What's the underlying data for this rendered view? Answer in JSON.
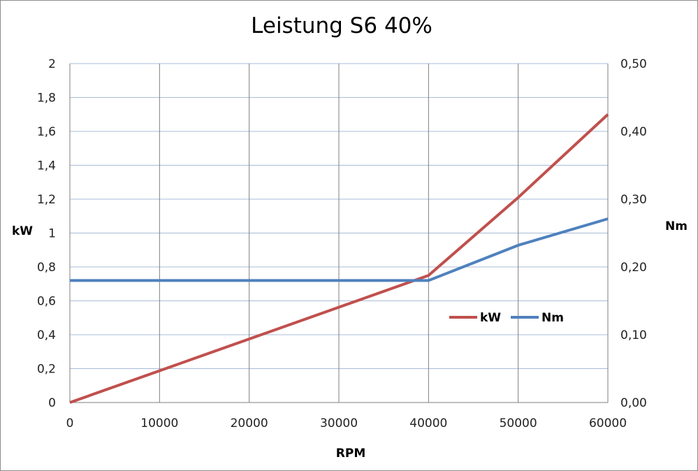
{
  "chart_data": {
    "type": "line",
    "title": "Leistung S6 40%",
    "xlabel": "RPM",
    "ylabel_left": "kW",
    "ylabel_right": "Nm",
    "xlim": [
      0,
      60000
    ],
    "ylim_left": [
      0,
      2
    ],
    "ylim_right": [
      0,
      0.5
    ],
    "x_ticks": [
      "0",
      "10000",
      "20000",
      "30000",
      "40000",
      "50000",
      "60000"
    ],
    "y_left_ticks": [
      "0",
      "0,2",
      "0,4",
      "0,6",
      "0,8",
      "1",
      "1,2",
      "1,4",
      "1,6",
      "1,8",
      "2"
    ],
    "y_right_ticks": [
      "0,00",
      "0,10",
      "0,20",
      "0,30",
      "0,40",
      "0,50"
    ],
    "grid": true,
    "legend_position": "right-middle",
    "series": [
      {
        "name": "kW",
        "axis": "left",
        "color": "#c0504d",
        "x": [
          0,
          40000,
          50000,
          60000
        ],
        "y": [
          0,
          0.75,
          1.21,
          1.7
        ]
      },
      {
        "name": "Nm",
        "axis": "right",
        "color": "#4f81bd",
        "x": [
          0,
          40000,
          50000,
          60000
        ],
        "y": [
          0.18,
          0.18,
          0.232,
          0.271
        ]
      }
    ]
  }
}
